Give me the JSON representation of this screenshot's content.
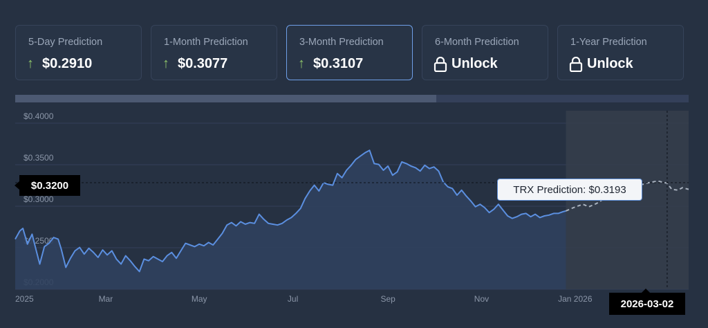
{
  "cards": [
    {
      "label": "5-Day Prediction",
      "value": "$0.2910",
      "icon": "arrow-up-icon",
      "active": false
    },
    {
      "label": "1-Month Prediction",
      "value": "$0.3077",
      "icon": "arrow-up-icon",
      "active": false
    },
    {
      "label": "3-Month Prediction",
      "value": "$0.3107",
      "icon": "arrow-up-icon",
      "active": true
    },
    {
      "label": "6-Month Prediction",
      "value": "Unlock",
      "icon": "lock-icon",
      "active": false
    },
    {
      "label": "1-Year Prediction",
      "value": "Unlock",
      "icon": "lock-icon",
      "active": false
    }
  ],
  "colors": {
    "line": "#5b8fe0",
    "forecast": "#a9b2bf",
    "up": "#8ec46a",
    "background": "#263142"
  },
  "scrollbar": {
    "visible_fraction": 0.625
  },
  "crosshair": {
    "price_label": "$0.3200",
    "price": 0.32,
    "date_label": "2026-03-02"
  },
  "tooltip": {
    "text": "TRX Prediction: $0.3193"
  },
  "chart_data": {
    "type": "line",
    "title": "",
    "ylim": [
      0.195,
      0.4
    ],
    "y_ticks": [
      0.2,
      0.25,
      0.3,
      0.35,
      0.4
    ],
    "y_tick_labels": [
      "$0.2000",
      "$0.2500",
      "$0.3000",
      "$0.3500",
      "$0.4000"
    ],
    "x_ticks": [
      "2025-01-01",
      "2025-03-01",
      "2025-05-01",
      "2025-07-01",
      "2025-09-01",
      "2025-11-01",
      "2026-01-01"
    ],
    "x_tick_labels": [
      "2025",
      "Mar",
      "May",
      "Jul",
      "Sep",
      "Nov",
      "Jan 2026"
    ],
    "xlim": [
      "2025-01-01",
      "2026-03-16"
    ],
    "grid": true,
    "forecast_start": "2025-12-26",
    "series": [
      {
        "type": "historical",
        "points": [
          [
            "2025-01-01",
            0.252
          ],
          [
            "2025-01-04",
            0.262
          ],
          [
            "2025-01-06",
            0.265
          ],
          [
            "2025-01-09",
            0.246
          ],
          [
            "2025-01-12",
            0.258
          ],
          [
            "2025-01-15",
            0.236
          ],
          [
            "2025-01-17",
            0.222
          ],
          [
            "2025-01-20",
            0.243
          ],
          [
            "2025-01-23",
            0.247
          ],
          [
            "2025-01-26",
            0.254
          ],
          [
            "2025-01-29",
            0.252
          ],
          [
            "2025-01-31",
            0.24
          ],
          [
            "2025-02-03",
            0.218
          ],
          [
            "2025-02-06",
            0.229
          ],
          [
            "2025-02-09",
            0.238
          ],
          [
            "2025-02-12",
            0.242
          ],
          [
            "2025-02-15",
            0.234
          ],
          [
            "2025-02-18",
            0.241
          ],
          [
            "2025-02-21",
            0.236
          ],
          [
            "2025-02-24",
            0.23
          ],
          [
            "2025-02-27",
            0.239
          ],
          [
            "2025-03-02",
            0.233
          ],
          [
            "2025-03-05",
            0.238
          ],
          [
            "2025-03-08",
            0.228
          ],
          [
            "2025-03-11",
            0.222
          ],
          [
            "2025-03-14",
            0.232
          ],
          [
            "2025-03-17",
            0.226
          ],
          [
            "2025-03-20",
            0.219
          ],
          [
            "2025-03-23",
            0.213
          ],
          [
            "2025-03-26",
            0.228
          ],
          [
            "2025-03-29",
            0.226
          ],
          [
            "2025-04-01",
            0.231
          ],
          [
            "2025-04-04",
            0.228
          ],
          [
            "2025-04-07",
            0.225
          ],
          [
            "2025-04-10",
            0.232
          ],
          [
            "2025-04-13",
            0.236
          ],
          [
            "2025-04-16",
            0.229
          ],
          [
            "2025-04-19",
            0.238
          ],
          [
            "2025-04-22",
            0.247
          ],
          [
            "2025-04-25",
            0.245
          ],
          [
            "2025-04-28",
            0.243
          ],
          [
            "2025-05-01",
            0.246
          ],
          [
            "2025-05-04",
            0.244
          ],
          [
            "2025-05-07",
            0.248
          ],
          [
            "2025-05-10",
            0.245
          ],
          [
            "2025-05-13",
            0.252
          ],
          [
            "2025-05-16",
            0.259
          ],
          [
            "2025-05-19",
            0.269
          ],
          [
            "2025-05-22",
            0.272
          ],
          [
            "2025-05-25",
            0.268
          ],
          [
            "2025-05-28",
            0.273
          ],
          [
            "2025-05-31",
            0.27
          ],
          [
            "2025-06-03",
            0.272
          ],
          [
            "2025-06-06",
            0.271
          ],
          [
            "2025-06-09",
            0.282
          ],
          [
            "2025-06-12",
            0.276
          ],
          [
            "2025-06-15",
            0.271
          ],
          [
            "2025-06-18",
            0.27
          ],
          [
            "2025-06-21",
            0.269
          ],
          [
            "2025-06-24",
            0.271
          ],
          [
            "2025-06-27",
            0.275
          ],
          [
            "2025-06-30",
            0.278
          ],
          [
            "2025-07-03",
            0.283
          ],
          [
            "2025-07-06",
            0.289
          ],
          [
            "2025-07-09",
            0.301
          ],
          [
            "2025-07-12",
            0.31
          ],
          [
            "2025-07-15",
            0.317
          ],
          [
            "2025-07-18",
            0.31
          ],
          [
            "2025-07-21",
            0.32
          ],
          [
            "2025-07-24",
            0.318
          ],
          [
            "2025-07-27",
            0.317
          ],
          [
            "2025-07-30",
            0.331
          ],
          [
            "2025-08-02",
            0.326
          ],
          [
            "2025-08-05",
            0.335
          ],
          [
            "2025-08-08",
            0.341
          ],
          [
            "2025-08-11",
            0.348
          ],
          [
            "2025-08-14",
            0.352
          ],
          [
            "2025-08-17",
            0.356
          ],
          [
            "2025-08-20",
            0.359
          ],
          [
            "2025-08-23",
            0.343
          ],
          [
            "2025-08-26",
            0.342
          ],
          [
            "2025-08-29",
            0.335
          ],
          [
            "2025-09-01",
            0.34
          ],
          [
            "2025-09-04",
            0.329
          ],
          [
            "2025-09-07",
            0.333
          ],
          [
            "2025-09-10",
            0.345
          ],
          [
            "2025-09-13",
            0.343
          ],
          [
            "2025-09-16",
            0.34
          ],
          [
            "2025-09-19",
            0.338
          ],
          [
            "2025-09-22",
            0.334
          ],
          [
            "2025-09-25",
            0.341
          ],
          [
            "2025-09-28",
            0.337
          ],
          [
            "2025-10-01",
            0.339
          ],
          [
            "2025-10-04",
            0.334
          ],
          [
            "2025-10-07",
            0.321
          ],
          [
            "2025-10-10",
            0.315
          ],
          [
            "2025-10-13",
            0.313
          ],
          [
            "2025-10-16",
            0.305
          ],
          [
            "2025-10-19",
            0.311
          ],
          [
            "2025-10-22",
            0.304
          ],
          [
            "2025-10-25",
            0.298
          ],
          [
            "2025-10-28",
            0.291
          ],
          [
            "2025-10-31",
            0.294
          ],
          [
            "2025-11-03",
            0.29
          ],
          [
            "2025-11-06",
            0.284
          ],
          [
            "2025-11-09",
            0.288
          ],
          [
            "2025-11-12",
            0.294
          ],
          [
            "2025-11-15",
            0.287
          ],
          [
            "2025-11-18",
            0.28
          ],
          [
            "2025-11-21",
            0.277
          ],
          [
            "2025-11-24",
            0.279
          ],
          [
            "2025-11-27",
            0.282
          ],
          [
            "2025-11-30",
            0.283
          ],
          [
            "2025-12-03",
            0.279
          ],
          [
            "2025-12-06",
            0.282
          ],
          [
            "2025-12-09",
            0.278
          ],
          [
            "2025-12-12",
            0.28
          ],
          [
            "2025-12-15",
            0.281
          ],
          [
            "2025-12-18",
            0.283
          ],
          [
            "2025-12-21",
            0.283
          ],
          [
            "2025-12-24",
            0.285
          ],
          [
            "2025-12-26",
            0.286
          ]
        ]
      },
      {
        "type": "forecast",
        "points": [
          [
            "2025-12-26",
            0.286
          ],
          [
            "2025-12-31",
            0.29
          ],
          [
            "2026-01-06",
            0.294
          ],
          [
            "2026-01-10",
            0.291
          ],
          [
            "2026-01-15",
            0.295
          ],
          [
            "2026-01-21",
            0.302
          ],
          [
            "2026-01-27",
            0.307
          ],
          [
            "2026-02-02",
            0.312
          ],
          [
            "2026-02-06",
            0.314
          ],
          [
            "2026-02-12",
            0.317
          ],
          [
            "2026-02-18",
            0.32
          ],
          [
            "2026-02-24",
            0.322
          ],
          [
            "2026-03-02",
            0.3193
          ],
          [
            "2026-03-05",
            0.312
          ],
          [
            "2026-03-09",
            0.311
          ],
          [
            "2026-03-12",
            0.314
          ],
          [
            "2026-03-16",
            0.312
          ]
        ]
      }
    ]
  }
}
